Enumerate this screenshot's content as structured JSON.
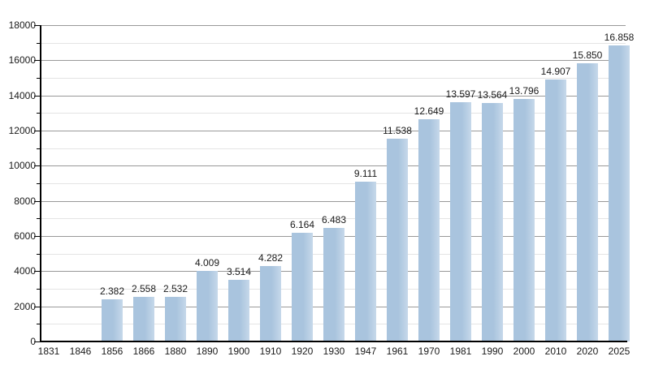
{
  "chart_data": {
    "type": "bar",
    "title": "",
    "xlabel": "",
    "ylabel": "",
    "categories": [
      "1831",
      "1846",
      "1856",
      "1866",
      "1880",
      "1890",
      "1900",
      "1910",
      "1920",
      "1930",
      "1947",
      "1961",
      "1970",
      "1981",
      "1990",
      "2000",
      "2010",
      "2020",
      "2025"
    ],
    "values": [
      null,
      null,
      2382,
      2558,
      2532,
      4009,
      3514,
      4282,
      6164,
      6483,
      9111,
      11538,
      12649,
      13597,
      13564,
      13796,
      14907,
      15850,
      16858
    ],
    "bar_labels": [
      null,
      null,
      "2.382",
      "2.558",
      "2.532",
      "4.009",
      "3.514",
      "4.282",
      "6.164",
      "6.483",
      "9.111",
      "11.538",
      "12.649",
      "13.597",
      "13.564",
      "13.796",
      "14.907",
      "15.850",
      "16.858"
    ],
    "y_tick_labels": [
      "0",
      "2000",
      "4000",
      "6000",
      "8000",
      "10000",
      "12000",
      "14000",
      "16000",
      "18000"
    ],
    "ylim": [
      0,
      18000
    ],
    "y_major_step": 2000,
    "y_minor_step": 1000,
    "grid": "horizontal major and minor, on",
    "legend": "none",
    "colors": {
      "bar_fill": "#a9c4de",
      "bar_fill_light": "#c6d8ea",
      "major_grid": "#999999",
      "minor_grid": "#e4e4e4",
      "axis": "#000000",
      "text": "#1a1a1a",
      "background": "#ffffff"
    }
  }
}
